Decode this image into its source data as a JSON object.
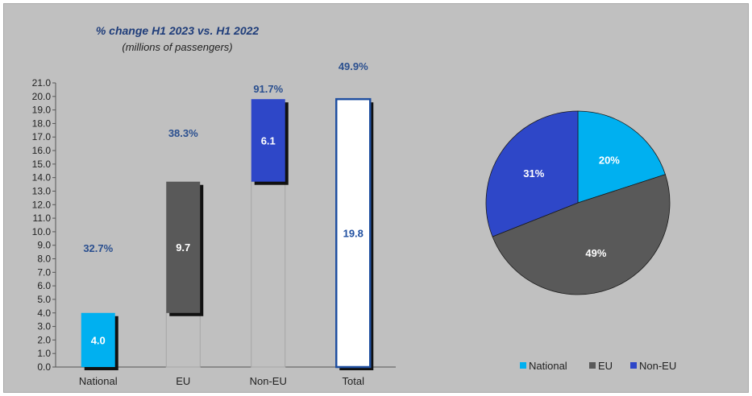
{
  "chart_data": [
    {
      "type": "bar",
      "title": "% change H1 2023 vs. H1 2022",
      "subtitle": "(millions of passengers)",
      "categories": [
        "National",
        "EU",
        "Non-EU",
        "Total"
      ],
      "values": [
        4.0,
        9.7,
        6.1,
        19.8
      ],
      "value_labels": [
        "4.0",
        "9.7",
        "6.1",
        "19.8"
      ],
      "base": [
        0,
        4.0,
        13.7,
        0
      ],
      "pct_change": [
        "32.7%",
        "38.3%",
        "91.7%",
        "49.9%"
      ],
      "colors": [
        "#00b0f0",
        "#595959",
        "#2e47c8",
        "#ffffff"
      ],
      "ylim": [
        0,
        21
      ],
      "yticks": [
        "0.0",
        "1.0",
        "2.0",
        "3.0",
        "4.0",
        "5.0",
        "6.0",
        "7.0",
        "8.0",
        "9.0",
        "10.0",
        "11.0",
        "12.0",
        "13.0",
        "14.0",
        "15.0",
        "16.0",
        "17.0",
        "18.0",
        "19.0",
        "20.0",
        "21.0"
      ]
    },
    {
      "type": "pie",
      "labels": [
        "National",
        "EU",
        "Non-EU"
      ],
      "values": [
        20,
        49,
        31
      ],
      "value_labels": [
        "20%",
        "49%",
        "31%"
      ],
      "colors": [
        "#00b0f0",
        "#595959",
        "#2e47c8"
      ],
      "legend": "bottom"
    }
  ]
}
